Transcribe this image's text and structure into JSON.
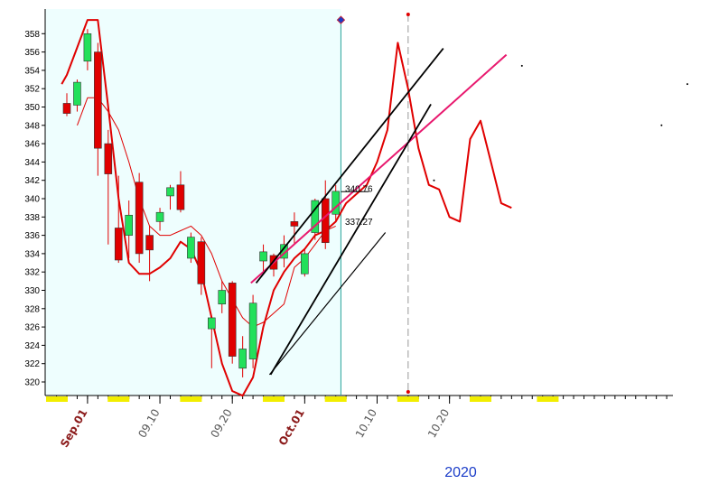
{
  "chart_data": {
    "type": "candlestick",
    "ylim": [
      318,
      360
    ],
    "yticks": [
      320,
      322,
      324,
      326,
      328,
      330,
      332,
      334,
      336,
      338,
      340,
      342,
      344,
      346,
      348,
      350,
      352,
      354,
      356,
      358
    ],
    "x_labels": [
      {
        "text": "Sep.01",
        "i": 2,
        "color": "#8b1a1a",
        "bold": true
      },
      {
        "text": "09.10",
        "i": 9,
        "color": "#555555",
        "bold": false
      },
      {
        "text": "09.20",
        "i": 16,
        "color": "#555555",
        "bold": false
      },
      {
        "text": "Oct.01",
        "i": 23,
        "color": "#8b1a1a",
        "bold": true
      },
      {
        "text": "10.10",
        "i": 30,
        "color": "#555555",
        "bold": false
      },
      {
        "text": "10.20",
        "i": 37,
        "color": "#555555",
        "bold": false
      }
    ],
    "year_label": "2020",
    "price_labels": [
      {
        "text": "340.76",
        "value": 340.76
      },
      {
        "text": "337.27",
        "value": 337.27
      }
    ],
    "candles": [
      {
        "o": 350.4,
        "h": 351.5,
        "l": 349.0,
        "c": 349.3
      },
      {
        "o": 350.2,
        "h": 353.0,
        "l": 349.5,
        "c": 352.7
      },
      {
        "o": 355.0,
        "h": 358.5,
        "l": 354.0,
        "c": 358.0
      },
      {
        "o": 356.0,
        "h": 357.0,
        "l": 342.5,
        "c": 345.5
      },
      {
        "o": 346.0,
        "h": 347.5,
        "l": 335.0,
        "c": 342.7
      },
      {
        "o": 336.8,
        "h": 342.5,
        "l": 333.0,
        "c": 333.3
      },
      {
        "o": 336.0,
        "h": 339.8,
        "l": 333.5,
        "c": 338.2
      },
      {
        "o": 341.8,
        "h": 342.8,
        "l": 333.0,
        "c": 334.0
      },
      {
        "o": 336.0,
        "h": 337.0,
        "l": 331.0,
        "c": 334.4
      },
      {
        "o": 337.5,
        "h": 339.0,
        "l": 336.5,
        "c": 338.5
      },
      {
        "o": 340.3,
        "h": 341.5,
        "l": 338.8,
        "c": 341.2
      },
      {
        "o": 341.5,
        "h": 343.0,
        "l": 338.5,
        "c": 338.8
      },
      {
        "o": 333.5,
        "h": 336.3,
        "l": 333.0,
        "c": 335.8
      },
      {
        "o": 335.3,
        "h": 335.8,
        "l": 329.5,
        "c": 330.7
      },
      {
        "o": 325.8,
        "h": 327.0,
        "l": 321.5,
        "c": 327.0
      },
      {
        "o": 328.5,
        "h": 331.0,
        "l": 327.5,
        "c": 330.0
      },
      {
        "o": 330.8,
        "h": 331.0,
        "l": 322.0,
        "c": 322.8
      },
      {
        "o": 321.5,
        "h": 325.0,
        "l": 320.5,
        "c": 323.6
      },
      {
        "o": 322.5,
        "h": 329.5,
        "l": 321.5,
        "c": 328.6
      },
      {
        "o": 333.2,
        "h": 335.0,
        "l": 332.0,
        "c": 334.2
      },
      {
        "o": 333.8,
        "h": 334.0,
        "l": 331.5,
        "c": 332.3
      },
      {
        "o": 333.5,
        "h": 336.0,
        "l": 332.5,
        "c": 335.0
      },
      {
        "o": 337.5,
        "h": 338.5,
        "l": 335.0,
        "c": 337.0
      },
      {
        "o": 331.8,
        "h": 334.5,
        "l": 331.5,
        "c": 334.0
      },
      {
        "o": 336.3,
        "h": 340.0,
        "l": 335.5,
        "c": 339.8
      },
      {
        "o": 340.0,
        "h": 342.0,
        "l": 334.5,
        "c": 335.2
      },
      {
        "o": 338.3,
        "h": 341.5,
        "l": 337.5,
        "c": 340.8
      }
    ],
    "ma_series": [
      {
        "name": "",
        "color": "#e00000",
        "width": 2,
        "points": [
          [
            -0.5,
            352.5
          ],
          [
            0,
            353.5
          ],
          [
            1,
            356.5
          ],
          [
            2,
            359.5
          ],
          [
            3,
            359.5
          ],
          [
            4,
            350
          ],
          [
            5,
            340
          ],
          [
            6,
            333
          ],
          [
            7,
            331.8
          ],
          [
            8,
            331.8
          ],
          [
            9,
            332.5
          ],
          [
            10,
            333.5
          ],
          [
            11,
            335.3
          ],
          [
            12,
            334.5
          ],
          [
            13,
            332
          ],
          [
            14,
            327
          ],
          [
            15,
            322
          ],
          [
            16,
            319
          ],
          [
            17,
            318.5
          ],
          [
            18,
            320.5
          ],
          [
            19,
            326
          ],
          [
            20,
            330
          ],
          [
            21,
            332
          ],
          [
            22,
            333.5
          ],
          [
            23,
            334.5
          ],
          [
            24,
            336
          ],
          [
            25,
            336.5
          ],
          [
            26,
            337.5
          ],
          [
            27,
            339.5
          ],
          [
            28,
            340.5
          ],
          [
            29,
            341.5
          ],
          [
            30,
            344
          ],
          [
            31,
            347.5
          ],
          [
            32,
            357
          ],
          [
            33,
            352
          ],
          [
            34,
            345.5
          ],
          [
            35,
            341.5
          ],
          [
            36,
            341
          ],
          [
            37,
            338
          ],
          [
            38,
            337.5
          ],
          [
            39,
            346.5
          ],
          [
            40,
            348.5
          ],
          [
            41,
            344
          ],
          [
            42,
            339.5
          ],
          [
            43,
            339
          ]
        ]
      },
      {
        "name": "",
        "color": "#e00000",
        "width": 1,
        "points": [
          [
            1,
            348
          ],
          [
            2,
            351
          ],
          [
            3,
            351
          ],
          [
            4,
            349.5
          ],
          [
            5,
            347.5
          ],
          [
            6,
            344
          ],
          [
            7,
            340
          ],
          [
            8,
            337
          ],
          [
            9,
            336
          ],
          [
            10,
            336
          ],
          [
            11,
            336.5
          ],
          [
            12,
            337
          ],
          [
            13,
            336
          ],
          [
            14,
            334
          ],
          [
            15,
            331
          ],
          [
            16,
            329
          ],
          [
            17,
            327
          ],
          [
            18,
            326
          ],
          [
            19,
            326.5
          ],
          [
            20,
            327.5
          ],
          [
            21,
            328.5
          ],
          [
            22,
            332.5
          ],
          [
            23,
            333.5
          ],
          [
            24,
            335
          ],
          [
            25,
            336.5
          ],
          [
            26,
            337
          ]
        ]
      }
    ],
    "cursor": {
      "i": 26.5,
      "value": 359.5
    },
    "future_marker": {
      "i": 33
    },
    "annotations_ylines": [
      340.76
    ]
  }
}
